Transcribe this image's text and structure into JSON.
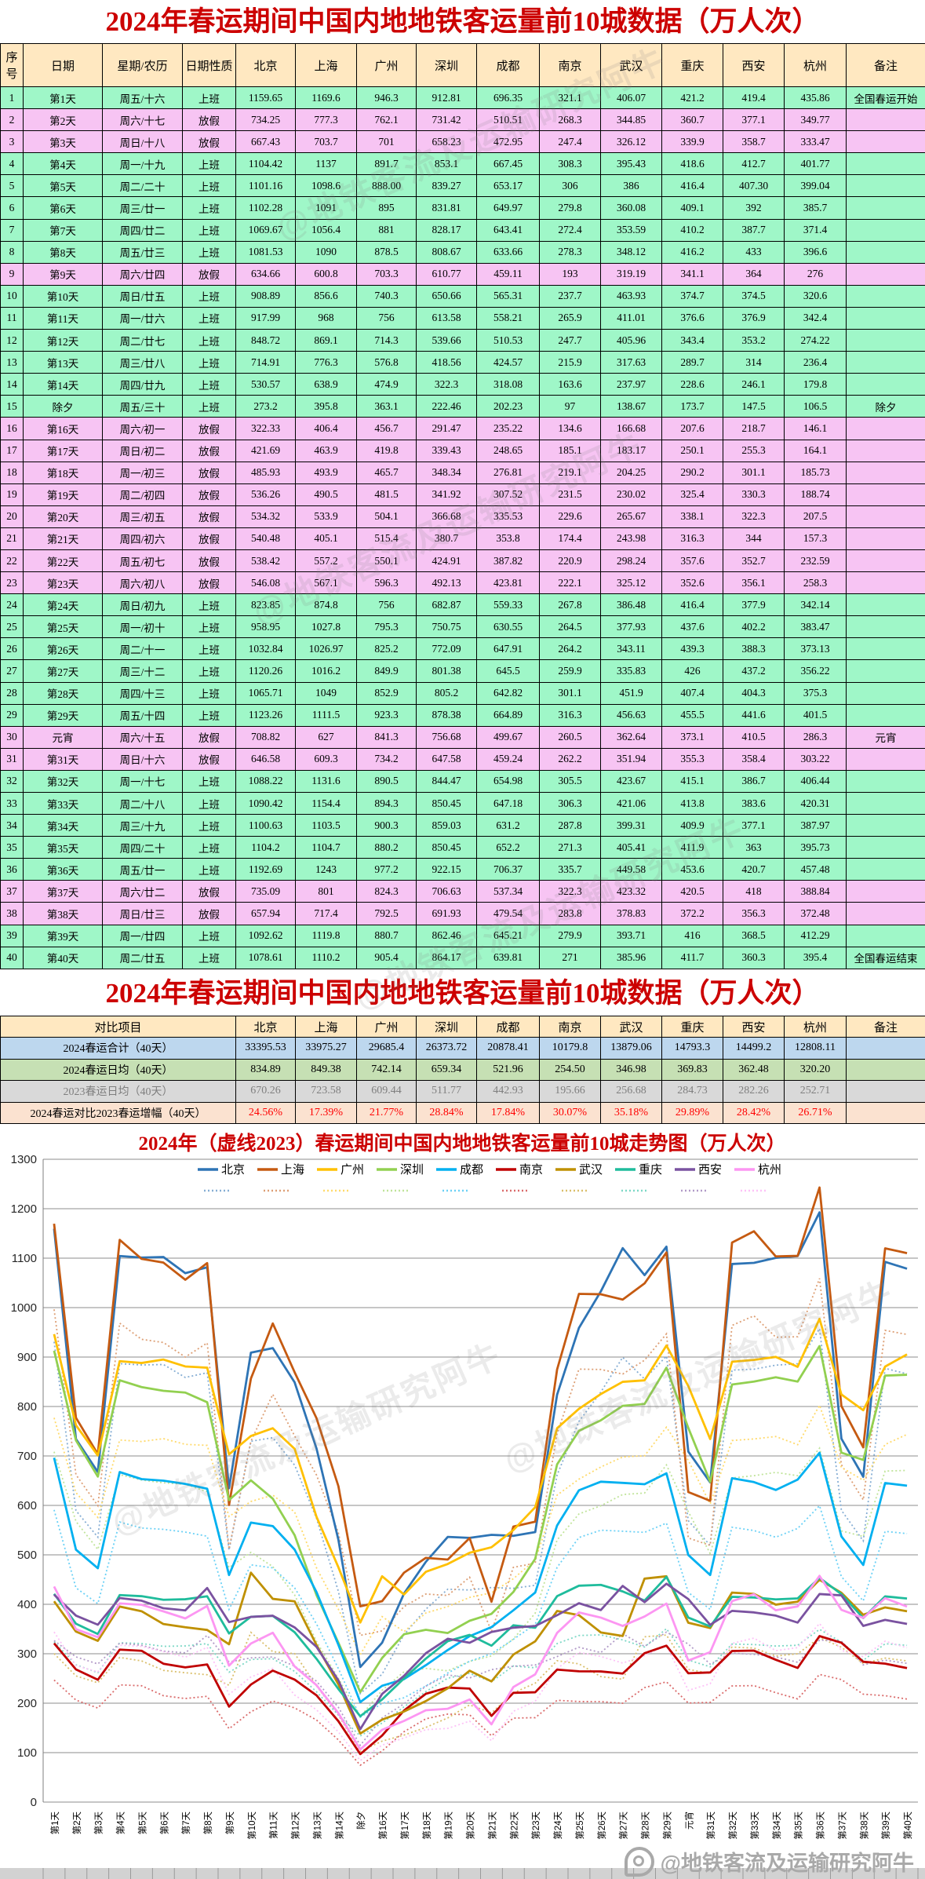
{
  "page": {
    "watermark_text": "@地铁客流及运输研究阿牛"
  },
  "table_2024": {
    "title": "2024年春运期间中国内地地铁客运量前10城数据（万人次）",
    "headers": [
      "序号",
      "日期",
      "星期/农历",
      "日期性质",
      "北京",
      "上海",
      "广州",
      "深圳",
      "成都",
      "南京",
      "武汉",
      "重庆",
      "西安",
      "杭州",
      "备注"
    ],
    "rows": [
      {
        "seq": "1",
        "week": "周五/十六",
        "type": "上班",
        "note": "全国春运开始"
      },
      {
        "seq": "2",
        "week": "周六/十七",
        "type": "放假",
        "note": ""
      },
      {
        "seq": "3",
        "week": "周日/十八",
        "type": "放假",
        "note": ""
      },
      {
        "seq": "4",
        "week": "周一/十九",
        "type": "上班",
        "note": ""
      },
      {
        "seq": "5",
        "week": "周二/二十",
        "type": "上班",
        "note": ""
      },
      {
        "seq": "6",
        "week": "周三/廿一",
        "type": "上班",
        "note": ""
      },
      {
        "seq": "7",
        "week": "周四/廿二",
        "type": "上班",
        "note": ""
      },
      {
        "seq": "8",
        "week": "周五/廿三",
        "type": "上班",
        "note": ""
      },
      {
        "seq": "9",
        "week": "周六/廿四",
        "type": "放假",
        "note": ""
      },
      {
        "seq": "10",
        "week": "周日/廿五",
        "type": "上班",
        "note": ""
      },
      {
        "seq": "11",
        "week": "周一/廿六",
        "type": "上班",
        "note": ""
      },
      {
        "seq": "12",
        "week": "周二/廿七",
        "type": "上班",
        "note": ""
      },
      {
        "seq": "13",
        "week": "周三/廿八",
        "type": "上班",
        "note": ""
      },
      {
        "seq": "14",
        "week": "周四/廿九",
        "type": "上班",
        "note": ""
      },
      {
        "seq": "15",
        "week": "周五/三十",
        "type": "上班",
        "note": "除夕"
      },
      {
        "seq": "16",
        "week": "周六/初一",
        "type": "放假",
        "note": ""
      },
      {
        "seq": "17",
        "week": "周日/初二",
        "type": "放假",
        "note": ""
      },
      {
        "seq": "18",
        "week": "周一/初三",
        "type": "放假",
        "note": ""
      },
      {
        "seq": "19",
        "week": "周二/初四",
        "type": "放假",
        "note": ""
      },
      {
        "seq": "20",
        "week": "周三/初五",
        "type": "放假",
        "note": ""
      },
      {
        "seq": "21",
        "week": "周四/初六",
        "type": "放假",
        "note": ""
      },
      {
        "seq": "22",
        "week": "周五/初七",
        "type": "放假",
        "note": ""
      },
      {
        "seq": "23",
        "week": "周六/初八",
        "type": "放假",
        "note": ""
      },
      {
        "seq": "24",
        "week": "周日/初九",
        "type": "上班",
        "note": ""
      },
      {
        "seq": "25",
        "week": "周一/初十",
        "type": "上班",
        "note": ""
      },
      {
        "seq": "26",
        "week": "周二/十一",
        "type": "上班",
        "note": ""
      },
      {
        "seq": "27",
        "week": "周三/十二",
        "type": "上班",
        "note": ""
      },
      {
        "seq": "28",
        "week": "周四/十三",
        "type": "上班",
        "note": ""
      },
      {
        "seq": "29",
        "week": "周五/十四",
        "type": "上班",
        "note": ""
      },
      {
        "seq": "30",
        "week": "周六/十五",
        "type": "放假",
        "note": "元宵"
      },
      {
        "seq": "31",
        "week": "周日/十六",
        "type": "放假",
        "note": ""
      },
      {
        "seq": "32",
        "week": "周一/十七",
        "type": "上班",
        "note": ""
      },
      {
        "seq": "33",
        "week": "周二/十八",
        "type": "上班",
        "note": ""
      },
      {
        "seq": "34",
        "week": "周三/十九",
        "type": "上班",
        "note": ""
      },
      {
        "seq": "35",
        "week": "周四/二十",
        "type": "上班",
        "note": ""
      },
      {
        "seq": "36",
        "week": "周五/廿一",
        "type": "上班",
        "note": ""
      },
      {
        "seq": "37",
        "week": "周六/廿二",
        "type": "放假",
        "note": ""
      },
      {
        "seq": "38",
        "week": "周日/廿三",
        "type": "放假",
        "note": ""
      },
      {
        "seq": "39",
        "week": "周一/廿四",
        "type": "上班",
        "note": ""
      },
      {
        "seq": "40",
        "week": "周二/廿五",
        "type": "上班",
        "note": "全国春运结束"
      }
    ]
  },
  "table_summary": {
    "title": "2024年春运期间中国内地地铁客运量前10城数据（万人次）",
    "headers": [
      "对比项目",
      "北京",
      "上海",
      "广州",
      "深圳",
      "成都",
      "南京",
      "武汉",
      "重庆",
      "西安",
      "杭州",
      "备注"
    ],
    "rows": [
      {
        "label": "2024春运合计（40天）",
        "style": "sum-blue",
        "values": [
          "33395.53",
          "33975.27",
          "29685.4",
          "26373.72",
          "20878.41",
          "10179.8",
          "13879.06",
          "14793.3",
          "14499.2",
          "12808.11"
        ]
      },
      {
        "label": "2024春运日均（40天）",
        "style": "sum-green",
        "values": [
          "834.89",
          "849.38",
          "742.14",
          "659.34",
          "521.96",
          "254.50",
          "346.98",
          "369.83",
          "362.48",
          "320.20"
        ]
      },
      {
        "label": "2023春运日均（40天）",
        "style": "sum-gray",
        "values": [
          "670.26",
          "723.58",
          "609.44",
          "511.77",
          "442.93",
          "195.66",
          "256.68",
          "284.73",
          "282.26",
          "252.71"
        ]
      },
      {
        "label": "2024春运对比2023春运增幅（40天）",
        "style": "sum-orange",
        "values": [
          "24.56%",
          "17.39%",
          "21.77%",
          "28.84%",
          "17.84%",
          "30.07%",
          "35.18%",
          "29.89%",
          "28.42%",
          "26.71%"
        ]
      }
    ]
  },
  "chart_data": {
    "type": "line",
    "title": "2024年（虚线2023）春运期间中国内地地铁客运量前10城走势图（万人次）",
    "title_color": "#CC0000",
    "ylim": [
      0,
      1300
    ],
    "ytick_step": 100,
    "grid": "horizontal",
    "legend_position": "top, two rows: solid 2024 swatches with labels, dotted 2023 swatches below",
    "note_2023": "虚线为2023年同期走势，图中按 2023春运日均/2024春运日均 比例近似绘制",
    "categories": [
      "第1天",
      "第2天",
      "第3天",
      "第4天",
      "第5天",
      "第6天",
      "第7天",
      "第8天",
      "第9天",
      "第10天",
      "第11天",
      "第12天",
      "第13天",
      "第14天",
      "除夕",
      "第16天",
      "第17天",
      "第18天",
      "第19天",
      "第20天",
      "第21天",
      "第22天",
      "第23天",
      "第24天",
      "第25天",
      "第26天",
      "第27天",
      "第28天",
      "第29天",
      "元宵",
      "第31天",
      "第32天",
      "第33天",
      "第34天",
      "第35天",
      "第36天",
      "第37天",
      "第38天",
      "第39天",
      "第40天"
    ],
    "series": [
      {
        "name": "北京",
        "color": "#2E74B5",
        "values": [
          "1159.65",
          "734.25",
          "667.43",
          "1104.42",
          "1101.16",
          "1102.28",
          "1069.67",
          "1081.53",
          "634.66",
          "908.89",
          "917.99",
          "848.72",
          "714.91",
          "530.57",
          "273.2",
          "322.33",
          "421.69",
          "485.93",
          "536.26",
          "534.32",
          "540.48",
          "538.42",
          "546.08",
          "823.85",
          "958.95",
          "1032.84",
          "1120.26",
          "1065.71",
          "1123.26",
          "708.82",
          "646.58",
          "1088.22",
          "1090.42",
          "1100.63",
          "1104.2",
          "1192.69",
          "735.09",
          "657.94",
          "1092.62",
          "1078.61"
        ]
      },
      {
        "name": "上海",
        "color": "#C55A11",
        "values": [
          "1169.6",
          "777.3",
          "703.7",
          "1137",
          "1098.6",
          "1091",
          "1056.4",
          "1090",
          "600.8",
          "856.6",
          "968",
          "869.1",
          "776.3",
          "638.9",
          "395.8",
          "406.4",
          "463.9",
          "493.9",
          "490.5",
          "533.9",
          "405.1",
          "557.2",
          "567.1",
          "874.8",
          "1027.8",
          "1026.97",
          "1016.2",
          "1049",
          "1111.5",
          "627",
          "609.3",
          "1131.6",
          "1154.4",
          "1103.5",
          "1104.7",
          "1243",
          "801",
          "717.4",
          "1119.8",
          "1110.2"
        ]
      },
      {
        "name": "广州",
        "color": "#FFC000",
        "values": [
          "946.3",
          "762.1",
          "701",
          "891.7",
          "888.00",
          "895",
          "881",
          "878.5",
          "703.3",
          "740.3",
          "756",
          "714.3",
          "576.8",
          "474.9",
          "363.1",
          "456.7",
          "419.8",
          "465.7",
          "481.5",
          "504.1",
          "515.4",
          "550.1",
          "596.3",
          "756",
          "795.3",
          "825.2",
          "849.9",
          "852.9",
          "923.3",
          "841.3",
          "734.2",
          "890.5",
          "894.3",
          "900.3",
          "880.2",
          "977.2",
          "824.3",
          "792.5",
          "880.7",
          "905.4"
        ]
      },
      {
        "name": "深圳",
        "color": "#92D050",
        "values": [
          "912.81",
          "731.42",
          "658.23",
          "853.1",
          "839.27",
          "831.81",
          "828.17",
          "808.67",
          "610.77",
          "650.66",
          "613.58",
          "539.66",
          "418.56",
          "322.3",
          "222.46",
          "291.47",
          "339.43",
          "348.34",
          "341.92",
          "366.68",
          "380.7",
          "424.91",
          "492.13",
          "682.87",
          "750.75",
          "772.09",
          "801.38",
          "805.2",
          "878.38",
          "756.68",
          "647.58",
          "844.47",
          "850.45",
          "859.03",
          "850.45",
          "922.15",
          "706.63",
          "691.93",
          "862.46",
          "864.17"
        ]
      },
      {
        "name": "成都",
        "color": "#00B0F0",
        "values": [
          "696.35",
          "510.51",
          "472.95",
          "667.45",
          "653.17",
          "649.97",
          "643.41",
          "633.66",
          "459.11",
          "565.31",
          "558.21",
          "510.53",
          "424.57",
          "318.08",
          "202.23",
          "235.22",
          "248.65",
          "276.81",
          "307.52",
          "335.53",
          "353.8",
          "387.82",
          "423.81",
          "559.33",
          "630.55",
          "647.91",
          "645.5",
          "642.82",
          "664.89",
          "499.67",
          "459.24",
          "654.98",
          "647.18",
          "631.2",
          "652.2",
          "706.37",
          "537.34",
          "479.54",
          "645.21",
          "639.81"
        ]
      },
      {
        "name": "南京",
        "color": "#C00000",
        "values": [
          "321.1",
          "268.3",
          "247.4",
          "308.3",
          "306",
          "279.8",
          "272.4",
          "278.3",
          "193",
          "237.7",
          "265.9",
          "247.7",
          "215.9",
          "163.6",
          "97",
          "134.6",
          "185.1",
          "219.1",
          "231.5",
          "229.6",
          "174.4",
          "220.9",
          "222.1",
          "267.8",
          "264.5",
          "264.2",
          "259.9",
          "301.1",
          "316.3",
          "260.5",
          "262.2",
          "305.5",
          "306.3",
          "287.8",
          "271.3",
          "335.7",
          "322.3",
          "283.8",
          "279.9",
          "271"
        ]
      },
      {
        "name": "武汉",
        "color": "#BF9000",
        "values": [
          "406.07",
          "344.85",
          "326.12",
          "395.43",
          "386",
          "360.08",
          "353.59",
          "348.12",
          "319.19",
          "463.93",
          "411.01",
          "405.96",
          "317.63",
          "237.97",
          "138.67",
          "166.68",
          "183.17",
          "204.25",
          "230.02",
          "265.67",
          "243.98",
          "298.24",
          "325.12",
          "386.48",
          "377.93",
          "343.11",
          "335.83",
          "451.9",
          "456.63",
          "362.64",
          "351.94",
          "423.67",
          "421.06",
          "399.31",
          "405.41",
          "449.58",
          "423.32",
          "378.83",
          "393.71",
          "385.96"
        ]
      },
      {
        "name": "重庆",
        "color": "#1FBC9C",
        "values": [
          "421.2",
          "360.7",
          "339.9",
          "418.6",
          "416.4",
          "409.1",
          "410.2",
          "416.2",
          "341.1",
          "374.7",
          "376.6",
          "343.4",
          "289.7",
          "228.6",
          "173.7",
          "207.6",
          "250.1",
          "290.2",
          "325.4",
          "338.1",
          "316.3",
          "357.6",
          "352.6",
          "416.4",
          "437.6",
          "439.3",
          "426",
          "407.4",
          "455.5",
          "373.1",
          "355.3",
          "415.1",
          "413.8",
          "409.9",
          "411.9",
          "453.6",
          "420.5",
          "372.2",
          "416",
          "411.7"
        ]
      },
      {
        "name": "西安",
        "color": "#7A52A0",
        "values": [
          "419.4",
          "377.1",
          "358.7",
          "412.7",
          "407.30",
          "392",
          "387.7",
          "433",
          "364",
          "374.5",
          "376.9",
          "353.2",
          "314",
          "246.1",
          "147.5",
          "218.7",
          "255.3",
          "301.1",
          "330.3",
          "322.3",
          "344",
          "352.7",
          "356.1",
          "377.9",
          "402.2",
          "388.3",
          "437.2",
          "404.3",
          "441.6",
          "410.5",
          "358.4",
          "386.7",
          "383.6",
          "377.1",
          "363",
          "420.7",
          "418",
          "356.3",
          "368.5",
          "360.3"
        ]
      },
      {
        "name": "杭州",
        "color": "#FC96F2",
        "values": [
          "435.86",
          "349.77",
          "333.47",
          "401.77",
          "399.04",
          "385.7",
          "371.4",
          "396.6",
          "276",
          "320.6",
          "342.4",
          "274.22",
          "236.4",
          "179.8",
          "106.5",
          "146.1",
          "164.1",
          "185.73",
          "188.74",
          "207.5",
          "157.3",
          "232.59",
          "258.3",
          "342.14",
          "383.47",
          "373.13",
          "356.22",
          "375.3",
          "401.5",
          "286.3",
          "303.22",
          "406.44",
          "420.31",
          "387.97",
          "395.73",
          "457.48",
          "388.84",
          "372.48",
          "412.29",
          "395.4"
        ]
      }
    ]
  }
}
